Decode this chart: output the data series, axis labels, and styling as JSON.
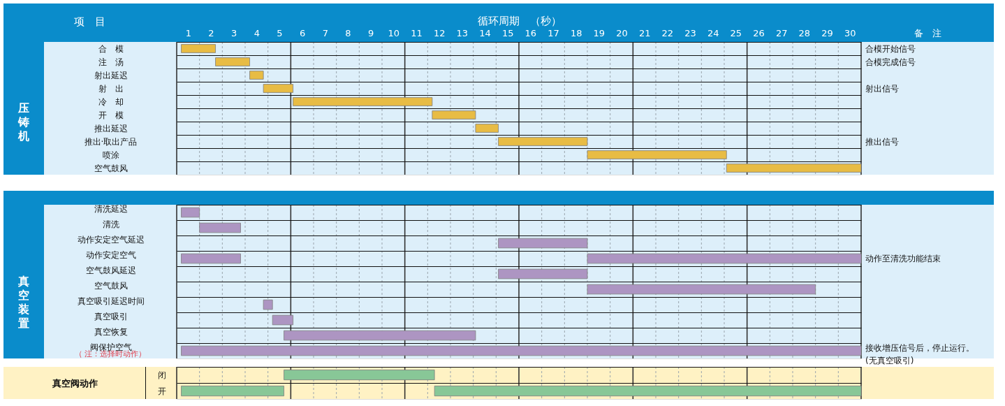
{
  "chart_data": [
    {
      "type": "bar",
      "orientation": "horizontal",
      "title": "压铸机",
      "xlabel": "循环周期　（秒）",
      "ylabel": "项　目",
      "y2label": "备　注",
      "categories": [
        "合　模",
        "注　汤",
        "射出延迟",
        "射　出",
        "冷　却",
        "开　模",
        "推出延迟",
        "推出·取出产品",
        "喷涂",
        "空气鼓风"
      ],
      "xlim": [
        0,
        30
      ],
      "xticks": [
        {
          "value": 0.5,
          "label": "1"
        },
        {
          "value": 1.5,
          "label": "2"
        },
        {
          "value": 2.5,
          "label": "3"
        },
        {
          "value": 3.5,
          "label": "4"
        },
        {
          "value": 4.5,
          "label": "5"
        },
        {
          "value": 5.5,
          "label": "6"
        },
        {
          "value": 6.5,
          "label": "7"
        },
        {
          "value": 7.5,
          "label": "8"
        },
        {
          "value": 8.5,
          "label": "9"
        },
        {
          "value": 9.5,
          "label": "10"
        },
        {
          "value": 10.5,
          "label": "11"
        },
        {
          "value": 11.5,
          "label": "12"
        },
        {
          "value": 12.5,
          "label": "13"
        },
        {
          "value": 13.5,
          "label": "14"
        },
        {
          "value": 14.5,
          "label": "15"
        },
        {
          "value": 15.5,
          "label": "16"
        },
        {
          "value": 16.5,
          "label": "17"
        },
        {
          "value": 17.5,
          "label": "18"
        },
        {
          "value": 18.5,
          "label": "19"
        },
        {
          "value": 19.5,
          "label": "20"
        },
        {
          "value": 20.5,
          "label": "21"
        },
        {
          "value": 21.5,
          "label": "22"
        },
        {
          "value": 22.5,
          "label": "23"
        },
        {
          "value": 23.5,
          "label": "24"
        },
        {
          "value": 24.5,
          "label": "25"
        },
        {
          "value": 25.5,
          "label": "26"
        },
        {
          "value": 26.5,
          "label": "27"
        },
        {
          "value": 27.5,
          "label": "28"
        },
        {
          "value": 28.5,
          "label": "29"
        },
        {
          "value": 29.5,
          "label": "30"
        }
      ],
      "grid": true,
      "series": [
        {
          "color": "#e8bc44",
          "base": [
            0.2,
            1.7,
            3.2,
            3.8,
            5.1,
            11.2,
            13.1,
            14.1,
            18.0,
            24.1
          ],
          "values": [
            1.5,
            1.5,
            0.6,
            1.3,
            6.1,
            1.9,
            1.0,
            3.9,
            6.1,
            5.9
          ]
        }
      ],
      "annotations": [
        "合模开始信号",
        "合模完成信号",
        "射出信号",
        "推出信号"
      ]
    },
    {
      "type": "bar",
      "orientation": "horizontal",
      "title": "真空装置",
      "categories": [
        "清洗延迟",
        "清洗",
        "动作安定空气延迟",
        "动作安定空气",
        "空气鼓风延迟",
        "空气鼓风",
        "真空吸引延迟时间",
        "真空吸引",
        "真空恢复",
        "阀保护空气"
      ],
      "xlim": [
        0,
        30
      ],
      "tick_labels": "y",
      "grid": true,
      "series": [
        {
          "color": "#ad95c2",
          "base": [
            0.2,
            1.0,
            14.1,
            0.2,
            14.1,
            18.0,
            3.8,
            4.2,
            4.7,
            0.2
          ],
          "values": [
            0.8,
            1.8,
            3.9,
            2.6,
            3.9,
            10.0,
            0.4,
            0.9,
            8.4,
            29.8
          ]
        },
        {
          "color": "#ad95c2",
          "base": [
            null,
            null,
            null,
            18.0,
            null,
            null,
            null,
            null,
            null,
            null
          ],
          "values": [
            null,
            null,
            null,
            12.0,
            null,
            null,
            null,
            null,
            null,
            null
          ]
        }
      ],
      "annotations": [
        "（ 注：选择时动作）",
        "动作至清洗功能结束",
        "接收增压信号后，停止运行。\n(无真空吸引)"
      ]
    },
    {
      "type": "bar",
      "orientation": "horizontal",
      "ylabel": "真空阀动作",
      "categories": [
        "闭",
        "开"
      ],
      "xlim": [
        0,
        30
      ],
      "tick_labels": "y",
      "grid": true,
      "series": [
        {
          "color": "#88c797",
          "base": [
            4.7,
            0.2
          ],
          "values": [
            6.6,
            4.5
          ]
        },
        {
          "color": "#88c797",
          "base": [
            null,
            11.3
          ],
          "values": [
            null,
            18.7
          ]
        }
      ]
    }
  ]
}
